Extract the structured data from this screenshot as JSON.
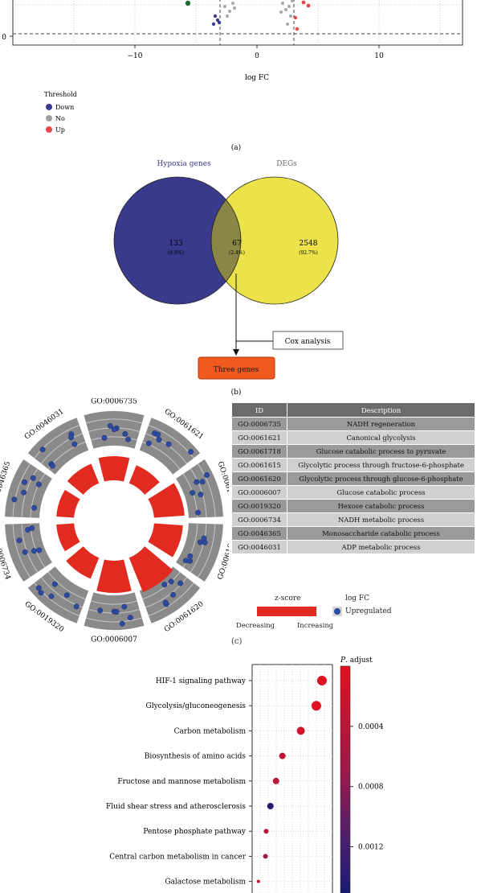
{
  "panel_a": {
    "x_axis_title": "log FC",
    "x_ticks": [
      "−10",
      "0",
      "10"
    ],
    "y_tick": "0",
    "legend_title": "Threshold",
    "legend": [
      {
        "label": "Down",
        "color": "#3d3b99"
      },
      {
        "label": "No",
        "color": "#a0a0a0"
      },
      {
        "label": "Up",
        "color": "#e84848"
      }
    ],
    "label": "(a)"
  },
  "panel_b": {
    "left_set": "Hypoxia genes",
    "right_set": "DEGs",
    "left_only": {
      "count": "133",
      "pct": "(4.8%)"
    },
    "overlap": {
      "count": "67",
      "pct": "(2.4%)"
    },
    "right_only": {
      "count": "2548",
      "pct": "(92.7%)"
    },
    "cox_label": "Cox analysis",
    "result_label": "Three genes",
    "colors": {
      "left": "#3a3a8c",
      "right": "#ece24a",
      "overlap": "#8a8645",
      "result": "#f05a1e"
    },
    "label": "(b)"
  },
  "panel_c": {
    "circle_labels": [
      "GO:0006735",
      "GO:0061621",
      "GO:0061718",
      "GO:0061615",
      "GO:0061620",
      "GO:0006007",
      "GO:0019320",
      "GO:0006734",
      "GO:0046365",
      "GO:0046031"
    ],
    "table_headers": [
      "ID",
      "Description"
    ],
    "table_rows": [
      [
        "GO:0006735",
        "NADH regeneration"
      ],
      [
        "GO:0061621",
        "Canonical glycolysis"
      ],
      [
        "GO:0061718",
        "Glucose catabolic process to pyruvate"
      ],
      [
        "GO:0061615",
        "Glycolytic process through fructose-6-phosphate"
      ],
      [
        "GO:0061620",
        "Glycolytic process through glucose-6-phosphate"
      ],
      [
        "GO:0006007",
        "Glucose catabolic process"
      ],
      [
        "GO:0019320",
        "Hexose catabolic process"
      ],
      [
        "GO:0006734",
        "NADH metabolic process"
      ],
      [
        "GO:0046365",
        "Monosaccharide catabolic process"
      ],
      [
        "GO:0046031",
        "ADP metabolic process"
      ]
    ],
    "zscore_title": "z-score",
    "zscore_low": "Decreasing",
    "zscore_high": "Increasing",
    "logfc_title": "log FC",
    "logfc_item": "Upregulated",
    "label": "(c)"
  },
  "panel_d": {
    "legend_title": "P. adjust",
    "colorbar_ticks": [
      "0.0004",
      "0.0008",
      "0.0012"
    ],
    "pathways": [
      "HIF-1 signaling pathway",
      "Glycolysis/gluconeogenesis",
      "Carbon metabolism",
      "Biosynthesis of amino acids",
      "Fructose and mannose metabolism",
      "Fluid shear stress and atherosclerosis",
      "Pentose phosphate pathway",
      "Central carbon metabolism in cancer",
      "Galactose metabolism"
    ]
  },
  "chart_data": {
    "type": "scatter",
    "title": "",
    "xlabel": "",
    "ylabel": "",
    "categories": [
      "HIF-1 signaling pathway",
      "Glycolysis/gluconeogenesis",
      "Carbon metabolism",
      "Biosynthesis of amino acids",
      "Fructose and mannose metabolism",
      "Fluid shear stress and atherosclerosis",
      "Pentose phosphate pathway",
      "Central carbon metabolism in cancer",
      "Galactose metabolism"
    ],
    "x": [
      0.92,
      0.84,
      0.62,
      0.36,
      0.27,
      0.19,
      0.13,
      0.12,
      0.02
    ],
    "p_adjust": [
      2e-05,
      5e-05,
      0.0002,
      0.00035,
      0.0004,
      0.00145,
      0.00045,
      0.0007,
      0.0004
    ],
    "size": [
      6,
      6,
      5,
      4,
      4,
      4,
      3,
      3,
      2
    ],
    "colorbar_range": [
      0,
      0.00155
    ],
    "grid": true,
    "legend_position": "right"
  }
}
